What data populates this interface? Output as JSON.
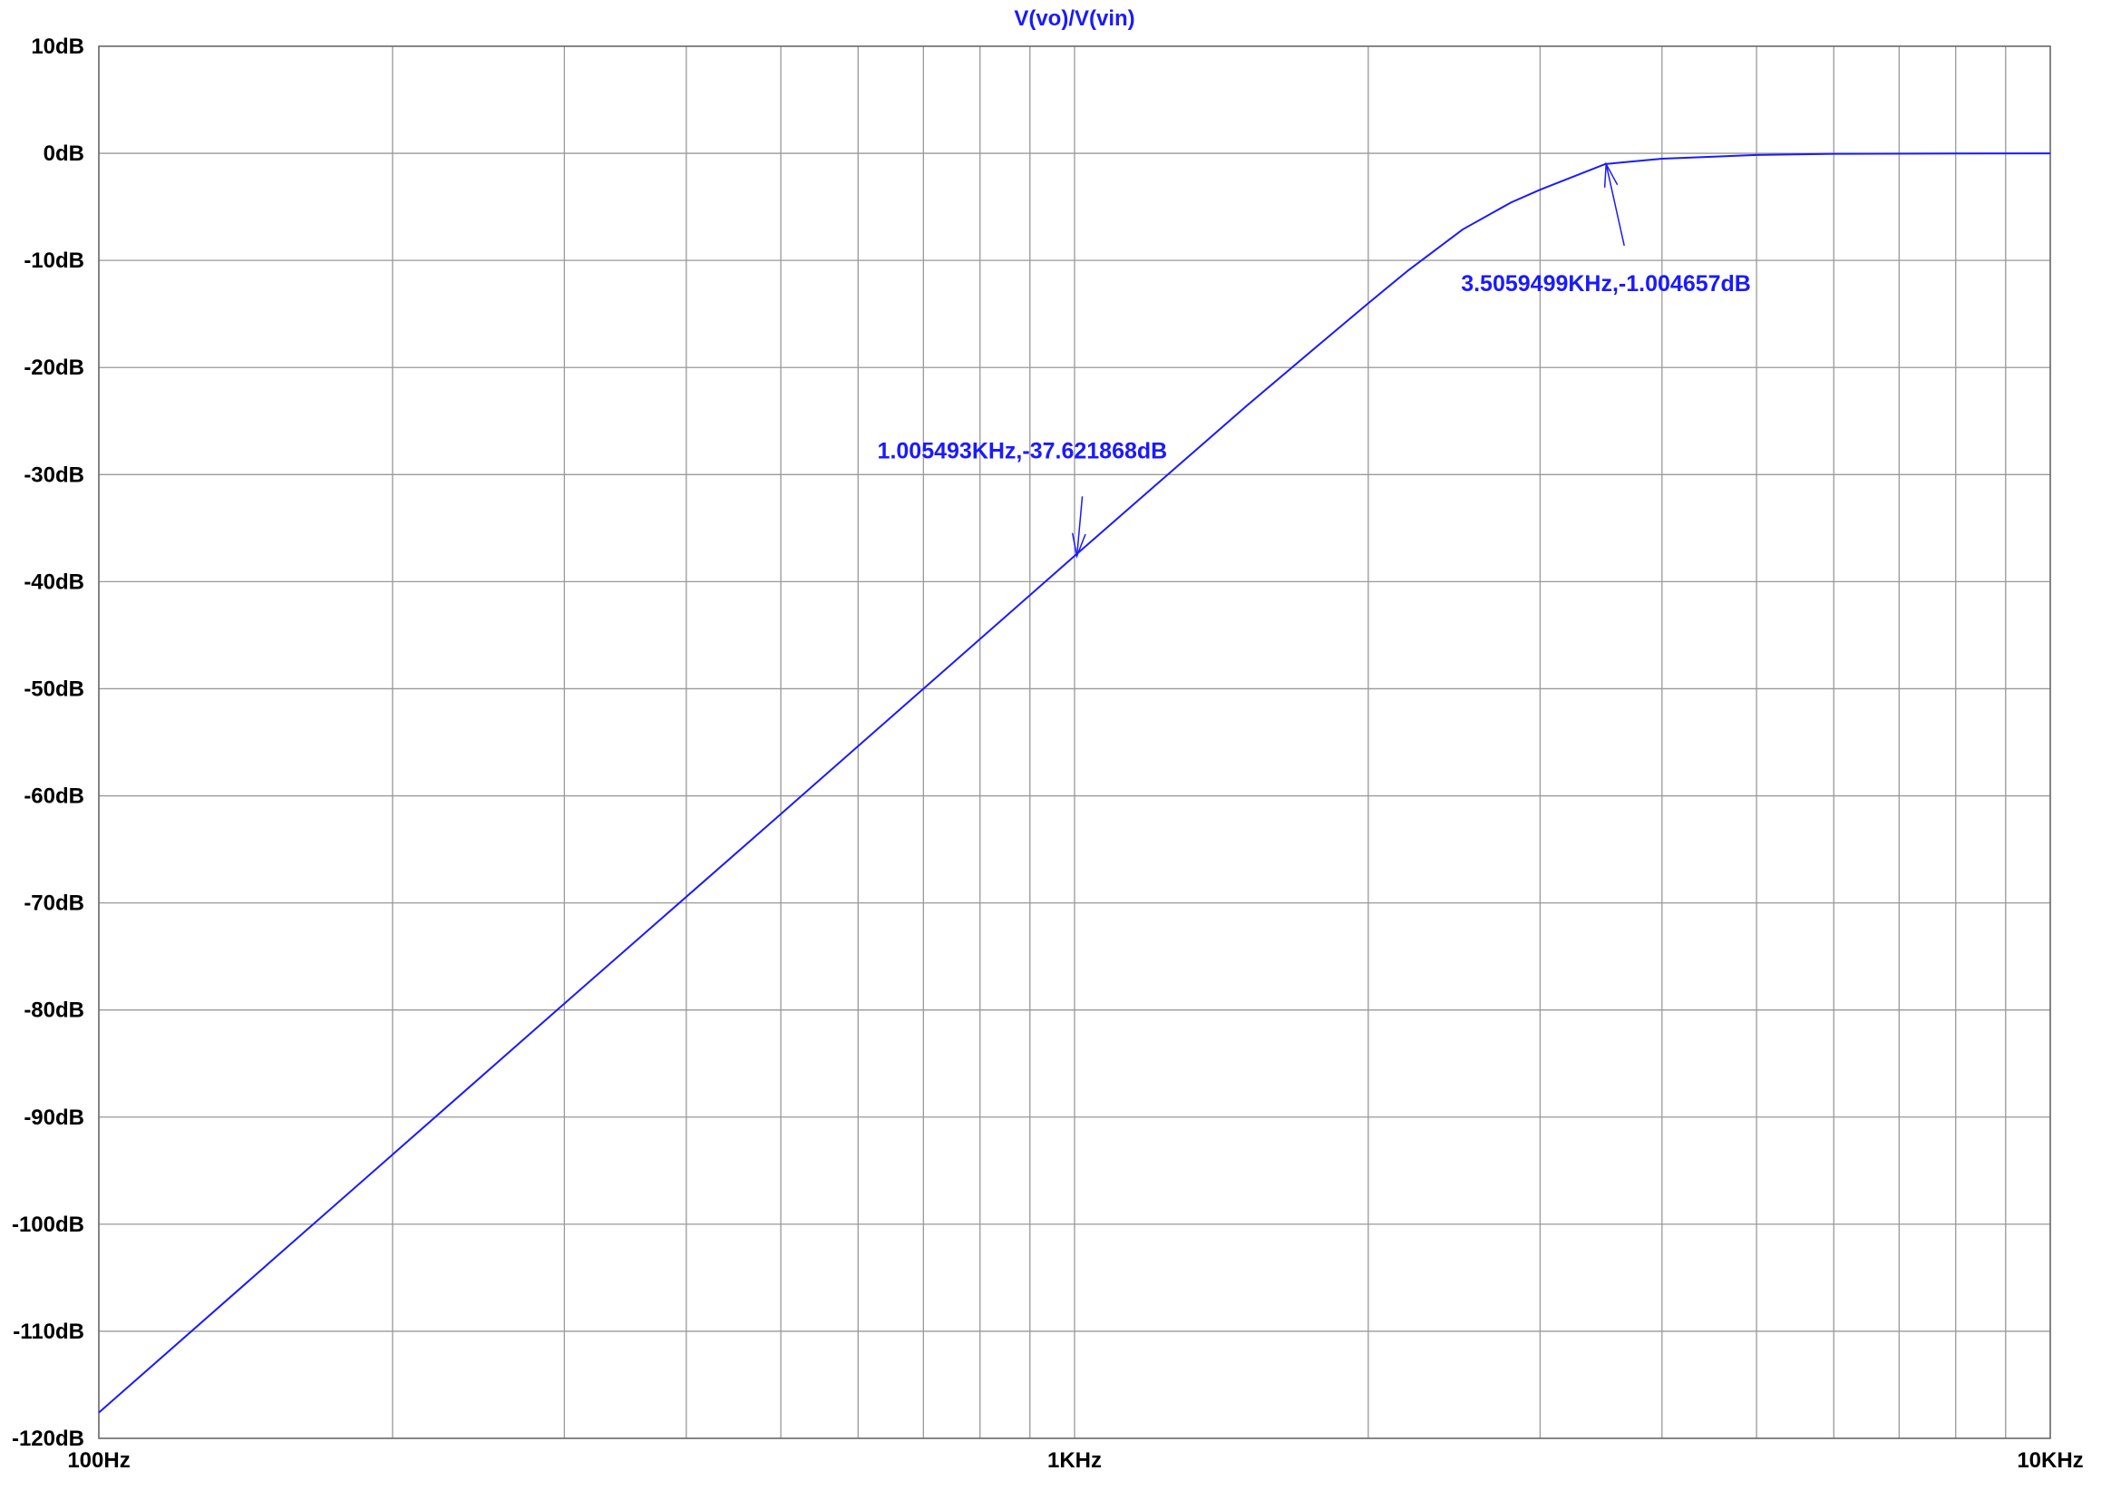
{
  "chart_data": {
    "type": "line",
    "title": "V(vo)/V(vin)",
    "xlabel": "",
    "ylabel": "",
    "x_scale": "log",
    "xlim": [
      100,
      10000
    ],
    "ylim": [
      -120,
      10
    ],
    "grid": true,
    "x_ticks": [
      {
        "value": 100,
        "label": "100Hz"
      },
      {
        "value": 1000,
        "label": "1KHz"
      },
      {
        "value": 10000,
        "label": "10KHz"
      }
    ],
    "x_minor_grid": [
      200,
      300,
      400,
      500,
      600,
      700,
      800,
      900,
      2000,
      3000,
      4000,
      5000,
      6000,
      7000,
      8000,
      9000
    ],
    "y_ticks": [
      {
        "value": 10,
        "label": "10dB"
      },
      {
        "value": 0,
        "label": "0dB"
      },
      {
        "value": -10,
        "label": "-10dB"
      },
      {
        "value": -20,
        "label": "-20dB"
      },
      {
        "value": -30,
        "label": "-30dB"
      },
      {
        "value": -40,
        "label": "-40dB"
      },
      {
        "value": -50,
        "label": "-50dB"
      },
      {
        "value": -60,
        "label": "-60dB"
      },
      {
        "value": -70,
        "label": "-70dB"
      },
      {
        "value": -80,
        "label": "-80dB"
      },
      {
        "value": -90,
        "label": "-90dB"
      },
      {
        "value": -100,
        "label": "-100dB"
      },
      {
        "value": -110,
        "label": "-110dB"
      },
      {
        "value": -120,
        "label": "-120dB"
      }
    ],
    "series": [
      {
        "color": "#1a1aff",
        "x": [
          100,
          150,
          200,
          300,
          500,
          700,
          1000,
          1200,
          1500,
          1800,
          2000,
          2200,
          2500,
          2800,
          3000,
          3500,
          4000,
          5000,
          6000,
          8000,
          10000
        ],
        "y": [
          -117.6,
          -103.5,
          -93.5,
          -79.4,
          -61.7,
          -50.0,
          -37.6,
          -31.3,
          -23.6,
          -17.5,
          -14.0,
          -10.9,
          -7.1,
          -4.6,
          -3.4,
          -1.0,
          -0.5,
          -0.15,
          -0.05,
          -0.01,
          0
        ]
      }
    ],
    "annotations": [
      {
        "text": "1.005493KHz,-37.621868dB",
        "x": 1005.493,
        "y": -37.621868
      },
      {
        "text": "3.5059499KHz,-1.004657dB",
        "x": 3505.9499,
        "y": -1.004657
      }
    ]
  },
  "colors": {
    "trace": "#1a1aff",
    "grid": "#999999",
    "title": "#1a1aff"
  }
}
